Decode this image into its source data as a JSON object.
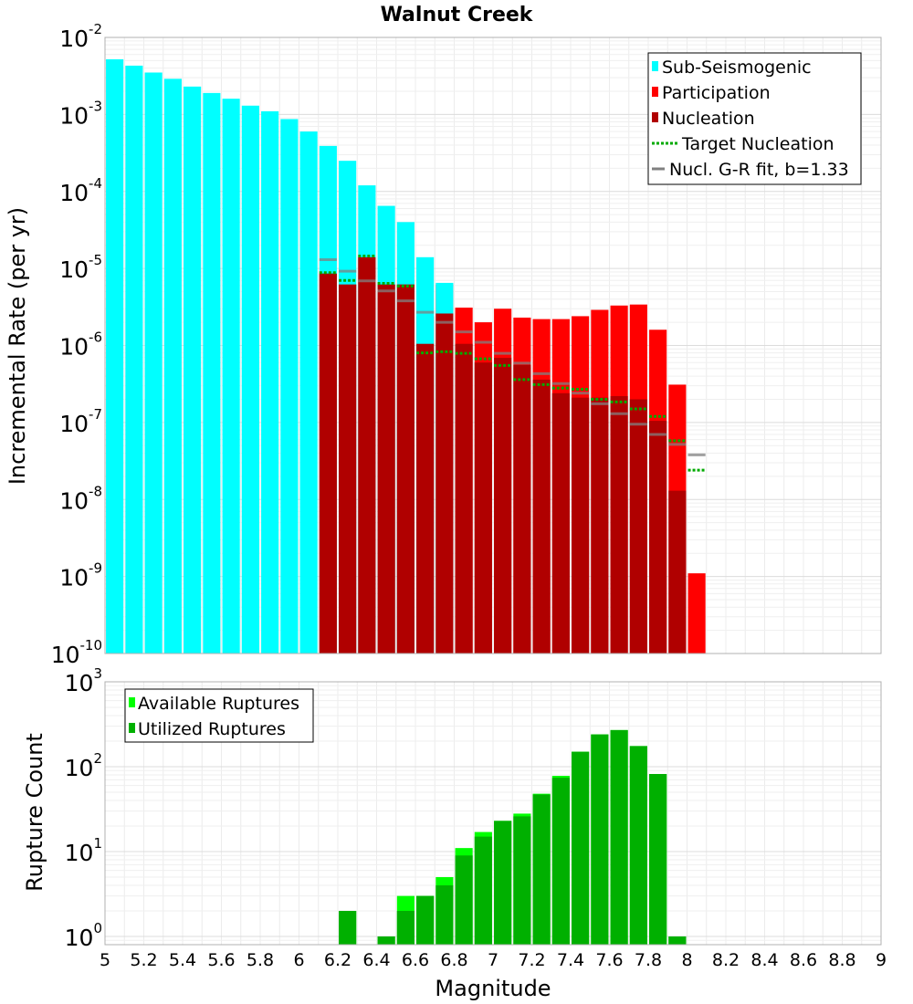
{
  "chart_data": [
    {
      "type": "bar",
      "title": "Walnut Creek",
      "xlabel": "",
      "ylabel": "Incremental Rate (per yr)",
      "yscale": "log",
      "ylim": [
        1e-10,
        0.01
      ],
      "xlim": [
        5,
        9
      ],
      "grid": true,
      "legend_position": "top-right",
      "ytick_exponents": [
        "-2",
        "-3",
        "-4",
        "-5",
        "-6",
        "-7",
        "-8",
        "-9",
        "-10"
      ],
      "ytick_base": "10",
      "bar_width": 0.09,
      "series": [
        {
          "name": "Participation",
          "color": "#ff0000",
          "x": [
            6.15,
            6.25,
            6.35,
            6.45,
            6.55,
            6.65,
            6.75,
            6.85,
            6.95,
            7.05,
            7.15,
            7.25,
            7.35,
            7.45,
            7.55,
            7.65,
            7.75,
            7.85,
            7.95,
            8.05
          ],
          "values": [
            8.6e-06,
            6.2e-06,
            1.4e-05,
            6.2e-06,
            6.2e-06,
            2.4e-06,
            6.2e-06,
            3.1e-06,
            2e-06,
            3e-06,
            2.3e-06,
            2.2e-06,
            2.2e-06,
            2.4e-06,
            2.9e-06,
            3.3e-06,
            3.4e-06,
            1.6e-06,
            3.1e-07,
            1.1e-09
          ]
        },
        {
          "name": "Sub-Seismogenic",
          "color": "#00ffff",
          "x": [
            5.05,
            5.15,
            5.25,
            5.35,
            5.45,
            5.55,
            5.65,
            5.75,
            5.85,
            5.95,
            6.05,
            6.15,
            6.25,
            6.35,
            6.45,
            6.55,
            6.65,
            6.75
          ],
          "values": [
            0.0052,
            0.0043,
            0.0035,
            0.0029,
            0.0023,
            0.0019,
            0.0016,
            0.0013,
            0.0011,
            0.00087,
            0.0006,
            0.00039,
            0.00025,
            0.00012,
            6.5e-05,
            4e-05,
            1.4e-05,
            6.5e-06
          ]
        },
        {
          "name": "Nucleation",
          "color": "#b00000",
          "x": [
            6.15,
            6.25,
            6.35,
            6.45,
            6.55,
            6.65,
            6.75,
            6.85,
            6.95,
            7.05,
            7.15,
            7.25,
            7.35,
            7.45,
            7.55,
            7.65,
            7.75,
            7.85,
            7.95
          ],
          "values": [
            8.6e-06,
            6.2e-06,
            1.4e-05,
            6.2e-06,
            6.2e-06,
            1.05e-06,
            2.6e-06,
            1.05e-06,
            6e-07,
            6.9e-07,
            5.6e-07,
            3.6e-07,
            2.4e-07,
            2.1e-07,
            2.1e-07,
            2.2e-07,
            2e-07,
            1.05e-07,
            1.3e-08
          ]
        },
        {
          "name": "Target Nucleation",
          "color": "#00aa00",
          "style": "dotted",
          "x": [
            6.15,
            6.25,
            6.35,
            6.45,
            6.55,
            6.65,
            6.75,
            6.85,
            6.95,
            7.05,
            7.15,
            7.25,
            7.35,
            7.45,
            7.55,
            7.65,
            7.75,
            7.85,
            7.95,
            8.05
          ],
          "values": [
            8.8e-06,
            7e-06,
            1.45e-05,
            6.4e-06,
            5.9e-06,
            8e-07,
            8.3e-07,
            7.9e-07,
            6.7e-07,
            5.5e-07,
            3.6e-07,
            3.1e-07,
            2.8e-07,
            2.7e-07,
            2e-07,
            1.85e-07,
            1.5e-07,
            1.2e-07,
            5.8e-08,
            2.4e-08
          ]
        },
        {
          "name": "Nucl. G-R fit, b=1.33",
          "color": "#808080",
          "style": "solid",
          "x": [
            6.15,
            6.25,
            6.35,
            6.45,
            6.55,
            6.65,
            6.75,
            6.85,
            6.95,
            7.05,
            7.15,
            7.25,
            7.35,
            7.45,
            7.55,
            7.65,
            7.75,
            7.85,
            7.95,
            8.05
          ],
          "values": [
            1.3e-05,
            9.2e-06,
            6.9e-06,
            5.1e-06,
            3.8e-06,
            2.7e-06,
            2e-06,
            1.5e-06,
            1.1e-06,
            7.9e-07,
            5.9e-07,
            4.3e-07,
            3.2e-07,
            2.4e-07,
            1.75e-07,
            1.3e-07,
            9.5e-08,
            7e-08,
            5.2e-08,
            3.8e-08
          ]
        }
      ],
      "legend": [
        "Sub-Seismogenic",
        "Participation",
        "Nucleation",
        "Target Nucleation",
        "Nucl. G-R fit, b=1.33"
      ]
    },
    {
      "type": "bar",
      "title": "",
      "xlabel": "Magnitude",
      "ylabel": "Rupture Count",
      "yscale": "log",
      "ylim": [
        0.8,
        1000
      ],
      "xlim": [
        5,
        9
      ],
      "grid": true,
      "legend_position": "top-left",
      "ytick_exponents": [
        "3",
        "2",
        "1",
        "0"
      ],
      "ytick_base": "10",
      "xtick_labels": [
        "5",
        "5.2",
        "5.4",
        "5.6",
        "5.8",
        "6",
        "6.2",
        "6.4",
        "6.6",
        "6.8",
        "7",
        "7.2",
        "7.4",
        "7.6",
        "7.8",
        "8",
        "8.2",
        "8.4",
        "8.6",
        "8.8",
        "9"
      ],
      "bar_width": 0.09,
      "series": [
        {
          "name": "Available Ruptures",
          "color": "#00ff00",
          "x": [
            6.25,
            6.45,
            6.55,
            6.65,
            6.75,
            6.85,
            6.95,
            7.05,
            7.15,
            7.25,
            7.35,
            7.45,
            7.55,
            7.65,
            7.75,
            7.85,
            7.95
          ],
          "values": [
            2,
            1,
            3,
            3,
            5,
            11,
            17,
            23,
            28,
            48,
            78,
            150,
            240,
            270,
            175,
            82,
            1
          ]
        },
        {
          "name": "Utilized Ruptures",
          "color": "#00b000",
          "x": [
            6.25,
            6.45,
            6.55,
            6.65,
            6.75,
            6.85,
            6.95,
            7.05,
            7.15,
            7.25,
            7.35,
            7.45,
            7.55,
            7.65,
            7.75,
            7.85,
            7.95
          ],
          "values": [
            2,
            1,
            2,
            3,
            4,
            9,
            15,
            23,
            26,
            47,
            74,
            150,
            240,
            270,
            175,
            82,
            1
          ]
        }
      ],
      "legend": [
        "Available Ruptures",
        "Utilized Ruptures"
      ]
    }
  ]
}
